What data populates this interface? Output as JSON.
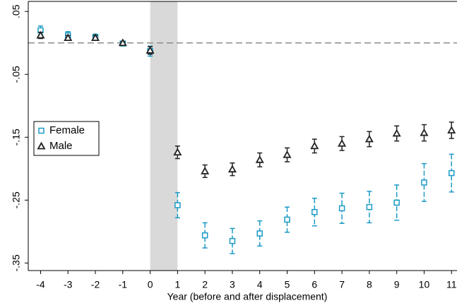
{
  "chart_data": {
    "type": "errorbar",
    "xlabel": "Year (before and after displacement)",
    "x": [
      -4,
      -3,
      -2,
      -1,
      0,
      1,
      2,
      3,
      4,
      5,
      6,
      7,
      8,
      9,
      10,
      11
    ],
    "series": [
      {
        "name": "Female",
        "color": "#1c9ac6",
        "marker": "square",
        "values": [
          0.02,
          0.012,
          0.009,
          -0.001,
          -0.013,
          -0.258,
          -0.306,
          -0.315,
          -0.303,
          -0.281,
          -0.269,
          -0.263,
          -0.261,
          -0.254,
          -0.222,
          -0.207
        ],
        "errors": [
          0.007,
          0.006,
          0.005,
          0.003,
          0.008,
          0.02,
          0.02,
          0.02,
          0.02,
          0.02,
          0.022,
          0.024,
          0.025,
          0.028,
          0.03,
          0.03
        ]
      },
      {
        "name": "Male",
        "color": "#222222",
        "marker": "triangle",
        "values": [
          0.012,
          0.008,
          0.008,
          0.0,
          -0.012,
          -0.174,
          -0.204,
          -0.201,
          -0.186,
          -0.178,
          -0.164,
          -0.16,
          -0.153,
          -0.144,
          -0.143,
          -0.139
        ],
        "errors": [
          0.005,
          0.004,
          0.004,
          0.002,
          0.006,
          0.01,
          0.01,
          0.01,
          0.011,
          0.011,
          0.011,
          0.011,
          0.012,
          0.012,
          0.013,
          0.013
        ]
      }
    ],
    "xlim": [
      -4.45,
      11.2
    ],
    "ylim": [
      -0.362,
      0.066
    ],
    "xticks": [
      -4,
      -3,
      -2,
      -1,
      0,
      1,
      2,
      3,
      4,
      5,
      6,
      7,
      8,
      9,
      10,
      11
    ],
    "yticks": [
      {
        "value": 0.05,
        "label": ".05"
      },
      {
        "value": -0.05,
        "label": "-.05"
      },
      {
        "value": -0.15,
        "label": "-.15"
      },
      {
        "value": -0.25,
        "label": "-.25"
      },
      {
        "value": -0.35,
        "label": "-.35"
      }
    ],
    "shade": [
      0,
      1
    ],
    "hline": 0,
    "legend": "left"
  }
}
